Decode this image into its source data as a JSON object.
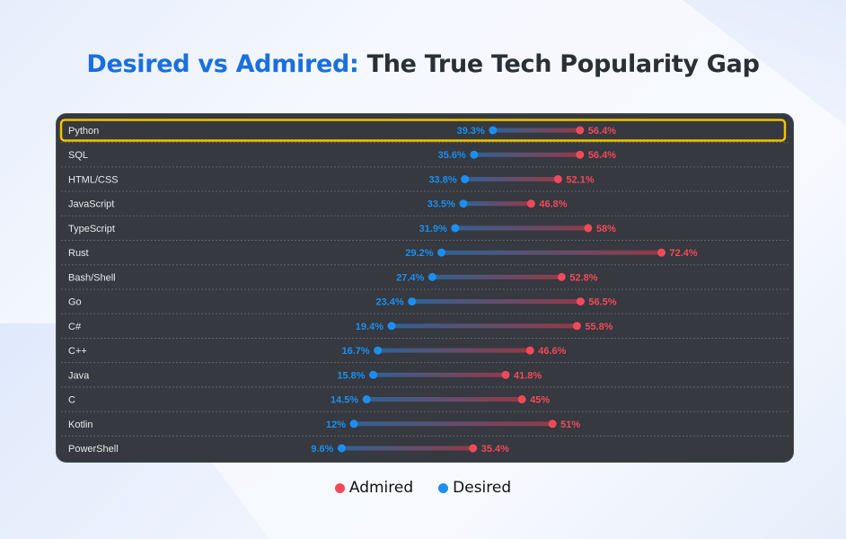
{
  "title": {
    "highlight": "Desired vs Admired:",
    "rest": " The True Tech Popularity Gap"
  },
  "chart_data": {
    "type": "dumbbell",
    "unit": "%",
    "categories": [
      "Python",
      "SQL",
      "HTML/CSS",
      "JavaScript",
      "TypeScript",
      "Rust",
      "Bash/Shell",
      "Go",
      "C#",
      "C++",
      "Java",
      "C",
      "Kotlin",
      "PowerShell"
    ],
    "series": [
      {
        "name": "Desired",
        "color": "#1a8ff0",
        "values": [
          39.3,
          35.6,
          33.8,
          33.5,
          31.9,
          29.2,
          27.4,
          23.4,
          19.4,
          16.7,
          15.8,
          14.5,
          12,
          9.6
        ]
      },
      {
        "name": "Admired",
        "color": "#f04a5a",
        "values": [
          56.4,
          56.4,
          52.1,
          46.8,
          58,
          72.4,
          52.8,
          56.5,
          55.8,
          46.6,
          41.8,
          45,
          51,
          35.4
        ]
      }
    ],
    "highlighted": "Python",
    "highlight_color": "#f2c200",
    "xlim": [
      0,
      100
    ],
    "grid": false,
    "legend_placement": "bottom"
  },
  "legend": [
    {
      "label": "Admired",
      "color": "#f04a5a"
    },
    {
      "label": "Desired",
      "color": "#1a8ff0"
    }
  ]
}
